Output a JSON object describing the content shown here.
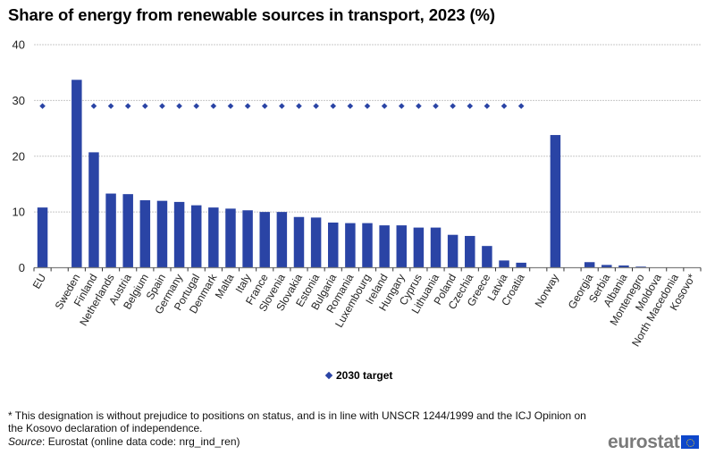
{
  "title": "Share of energy from renewable sources in transport, 2023 (%)",
  "legend": {
    "label": "2030 target",
    "icon": "diamond-marker-icon"
  },
  "footnote": "* This designation is without prejudice to positions on status, and is in line with UNSCR 1244/1999 and the ICJ Opinion on the Kosovo declaration of independence.",
  "source": {
    "label": "Source",
    "text": ": Eurostat (online data code: nrg_ind_ren)"
  },
  "logo": {
    "text": "eurostat",
    "icon": "eu-flag-icon"
  },
  "colors": {
    "bar": "#2a44a5",
    "target": "#2a44a5",
    "grid": "#c8c8c8",
    "axis": "#808080"
  },
  "chart_data": {
    "type": "bar",
    "title": "Share of energy from renewable sources in transport, 2023 (%)",
    "xlabel": "",
    "ylabel": "",
    "ylim": [
      0,
      40
    ],
    "yticks": [
      0,
      10,
      20,
      30,
      40
    ],
    "grid": true,
    "legend_position": "bottom-center",
    "categories": [
      "EU",
      "",
      "Sweden",
      "Finland",
      "Netherlands",
      "Austria",
      "Belgium",
      "Spain",
      "Germany",
      "Portugal",
      "Denmark",
      "Malta",
      "Italy",
      "France",
      "Slovenia",
      "Slovakia",
      "Estonia",
      "Bulgaria",
      "Romania",
      "Luxembourg",
      "Ireland",
      "Hungary",
      "Cyprus",
      "Lithuania",
      "Poland",
      "Czechia",
      "Greece",
      "Latvia",
      "Croatia",
      "",
      "Norway",
      "",
      "Georgia",
      "Serbia",
      "Albania",
      "Montenegro",
      "Moldova",
      "North Macedonia",
      "Kosovo*"
    ],
    "series": [
      {
        "name": "Share 2023",
        "kind": "bar",
        "values": [
          10.8,
          null,
          33.7,
          20.7,
          13.3,
          13.2,
          12.1,
          12.0,
          11.8,
          11.2,
          10.8,
          10.6,
          10.3,
          10.0,
          10.0,
          9.1,
          9.0,
          8.1,
          8.0,
          8.0,
          7.6,
          7.6,
          7.2,
          7.2,
          5.9,
          5.7,
          3.9,
          1.3,
          0.9,
          null,
          23.8,
          null,
          1.0,
          0.5,
          0.4,
          0.2,
          0.0,
          0.0,
          0.0
        ]
      },
      {
        "name": "2030 target",
        "kind": "marker",
        "values": [
          29,
          null,
          null,
          29,
          29,
          29,
          29,
          29,
          29,
          29,
          29,
          29,
          29,
          29,
          29,
          29,
          29,
          29,
          29,
          29,
          29,
          29,
          29,
          29,
          29,
          29,
          29,
          29,
          29,
          null,
          null,
          null,
          null,
          null,
          null,
          null,
          null,
          null,
          null
        ]
      }
    ]
  }
}
